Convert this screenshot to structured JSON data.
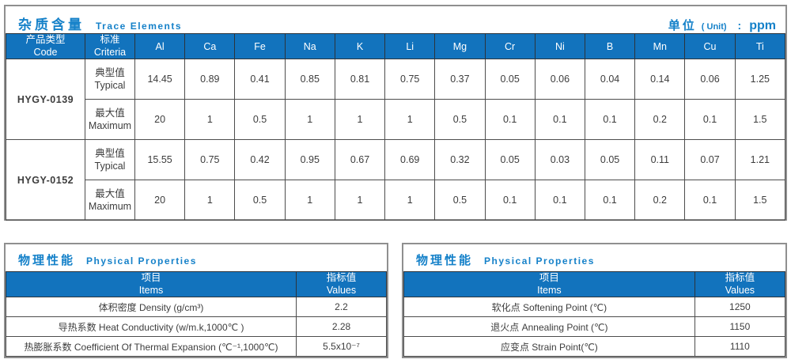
{
  "colors": {
    "accent_blue_title": "#1581c9",
    "table_header_bg": "#1273bd",
    "table_header_text": "#ffffff",
    "cell_border": "#4d4d4d",
    "outer_border": "#8f8f8f",
    "body_text": "#3d3d3d"
  },
  "trace": {
    "title_cn": "杂质含量",
    "title_en": "Trace Elements",
    "unit_cn": "单位",
    "unit_paren": "( Unit)",
    "unit_colon": ":",
    "unit_value": "ppm",
    "col_code_cn": "产品类型",
    "col_code_en": "Code",
    "col_criteria_cn": "标准",
    "col_criteria_en": "Criteria",
    "elements": [
      "Al",
      "Ca",
      "Fe",
      "Na",
      "K",
      "Li",
      "Mg",
      "Cr",
      "Ni",
      "B",
      "Mn",
      "Cu",
      "Ti"
    ],
    "rows": [
      {
        "code": "HYGY-0139",
        "criteria_cn": "典型值",
        "criteria_en": "Typical",
        "values": [
          "14.45",
          "0.89",
          "0.41",
          "0.85",
          "0.81",
          "0.75",
          "0.37",
          "0.05",
          "0.06",
          "0.04",
          "0.14",
          "0.06",
          "1.25"
        ]
      },
      {
        "criteria_cn": "最大值",
        "criteria_en": "Maximum",
        "values": [
          "20",
          "1",
          "0.5",
          "1",
          "1",
          "1",
          "0.5",
          "0.1",
          "0.1",
          "0.1",
          "0.2",
          "0.1",
          "1.5"
        ]
      },
      {
        "code": "HYGY-0152",
        "criteria_cn": "典型值",
        "criteria_en": "Typical",
        "values": [
          "15.55",
          "0.75",
          "0.42",
          "0.95",
          "0.67",
          "0.69",
          "0.32",
          "0.05",
          "0.03",
          "0.05",
          "0.11",
          "0.07",
          "1.21"
        ]
      },
      {
        "criteria_cn": "最大值",
        "criteria_en": "Maximum",
        "values": [
          "20",
          "1",
          "0.5",
          "1",
          "1",
          "1",
          "0.5",
          "0.1",
          "0.1",
          "0.1",
          "0.2",
          "0.1",
          "1.5"
        ]
      }
    ]
  },
  "physical_left": {
    "title_cn": "物理性能",
    "title_en": "Physical Properties",
    "col_item_cn": "项目",
    "col_item_en": "Items",
    "col_value_cn": "指标值",
    "col_value_en": "Values",
    "rows": [
      {
        "item": "体积密度 Density (g/cm³)",
        "value": "2.2"
      },
      {
        "item": "导热系数 Heat Conductivity (w/m.k,1000℃ )",
        "value": "2.28"
      },
      {
        "item": "热膨胀系数 Coefficient Of Thermal Expansion (℃⁻¹,1000℃)",
        "value": "5.5x10⁻⁷"
      }
    ]
  },
  "physical_right": {
    "title_cn": "物理性能",
    "title_en": "Physical Properties",
    "col_item_cn": "项目",
    "col_item_en": "Items",
    "col_value_cn": "指标值",
    "col_value_en": "Values",
    "rows": [
      {
        "item": "软化点 Softening Point (℃)",
        "value": "1250"
      },
      {
        "item": "退火点 Annealing Point (℃)",
        "value": "1150"
      },
      {
        "item": "应变点 Strain Point(℃)",
        "value": "1110"
      }
    ]
  }
}
